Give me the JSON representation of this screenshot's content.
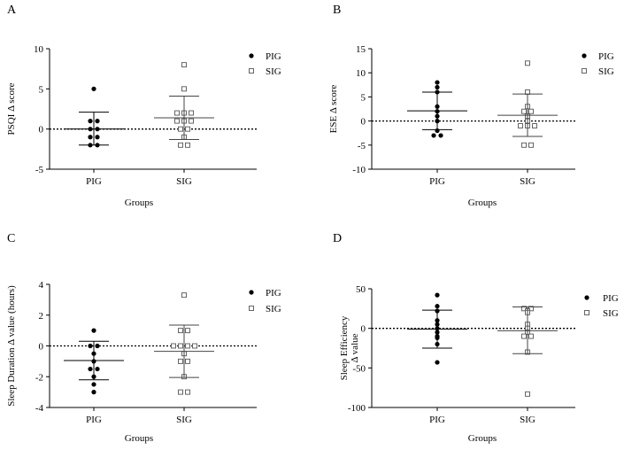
{
  "chart_data": [
    {
      "type": "scatter",
      "panel": "A",
      "categories": [
        "PIG",
        "SIG"
      ],
      "xlabel": "Groups",
      "ylabel": "PSQI Δ score",
      "ylim": [
        -5,
        10
      ],
      "yticks": [
        -5,
        0,
        5,
        10
      ],
      "reference_line": 0,
      "legend": [
        "PIG",
        "SIG"
      ],
      "series": [
        {
          "name": "PIG",
          "marker": "filled-circle",
          "values": [
            5,
            1,
            1,
            0,
            0,
            -1,
            -1,
            -2,
            -2
          ],
          "mean": 0,
          "sd_upper": 2.1,
          "sd_lower": -2.0
        },
        {
          "name": "SIG",
          "marker": "open-square",
          "values": [
            8,
            5,
            2,
            2,
            2,
            1,
            1,
            1,
            0,
            0,
            -1,
            -2,
            -2
          ],
          "mean": 1.4,
          "sd_upper": 4.1,
          "sd_lower": -1.3
        }
      ]
    },
    {
      "type": "scatter",
      "panel": "B",
      "categories": [
        "PIG",
        "SIG"
      ],
      "xlabel": "Groups",
      "ylabel": "ESE Δ score",
      "ylim": [
        -10,
        15
      ],
      "yticks": [
        -10,
        -5,
        0,
        5,
        10,
        15
      ],
      "reference_line": 0,
      "legend": [
        "PIG",
        "SIG"
      ],
      "series": [
        {
          "name": "PIG",
          "marker": "filled-circle",
          "values": [
            8,
            7,
            6,
            3,
            2,
            1,
            0,
            -2,
            -3,
            -3
          ],
          "mean": 2.1,
          "sd_upper": 6.0,
          "sd_lower": -1.8
        },
        {
          "name": "SIG",
          "marker": "open-square",
          "values": [
            12,
            6,
            3,
            2,
            2,
            1,
            0,
            -1,
            -1,
            -1,
            -5,
            -5
          ],
          "mean": 1.2,
          "sd_upper": 5.6,
          "sd_lower": -3.2
        }
      ]
    },
    {
      "type": "scatter",
      "panel": "C",
      "categories": [
        "PIG",
        "SIG"
      ],
      "xlabel": "Groups",
      "ylabel": "Sleep Duration Δ value (hours)",
      "ylim": [
        -4,
        4
      ],
      "yticks": [
        -4,
        -2,
        0,
        2,
        4
      ],
      "reference_line": 0,
      "legend": [
        "PIG",
        "SIG"
      ],
      "series": [
        {
          "name": "PIG",
          "marker": "filled-circle",
          "values": [
            1,
            0,
            0,
            -0.5,
            -1,
            -1.5,
            -1.5,
            -2,
            -2.5,
            -3
          ],
          "mean": -0.95,
          "sd_upper": 0.3,
          "sd_lower": -2.2
        },
        {
          "name": "SIG",
          "marker": "open-square",
          "values": [
            3.3,
            1,
            1,
            0,
            0,
            0,
            0,
            -0.5,
            -1,
            -1,
            -2,
            -3,
            -3
          ],
          "mean": -0.35,
          "sd_upper": 1.35,
          "sd_lower": -2.05
        }
      ]
    },
    {
      "type": "scatter",
      "panel": "D",
      "categories": [
        "PIG",
        "SIG"
      ],
      "xlabel": "Groups",
      "ylabel_lines": [
        "Sleep Efficiency",
        "Δ value"
      ],
      "ylim": [
        -100,
        50
      ],
      "yticks": [
        -100,
        -50,
        0,
        50
      ],
      "reference_line": 0,
      "legend": [
        "PIG",
        "SIG"
      ],
      "series": [
        {
          "name": "PIG",
          "marker": "filled-circle",
          "values": [
            42,
            28,
            22,
            10,
            5,
            0,
            -5,
            -10,
            -12,
            -20,
            -43
          ],
          "mean": -1,
          "sd_upper": 23,
          "sd_lower": -25
        },
        {
          "name": "SIG",
          "marker": "open-square",
          "values": [
            25,
            25,
            22,
            20,
            5,
            0,
            -5,
            -10,
            -10,
            -30,
            -83
          ],
          "mean": -3,
          "sd_upper": 27,
          "sd_lower": -32
        }
      ]
    }
  ]
}
